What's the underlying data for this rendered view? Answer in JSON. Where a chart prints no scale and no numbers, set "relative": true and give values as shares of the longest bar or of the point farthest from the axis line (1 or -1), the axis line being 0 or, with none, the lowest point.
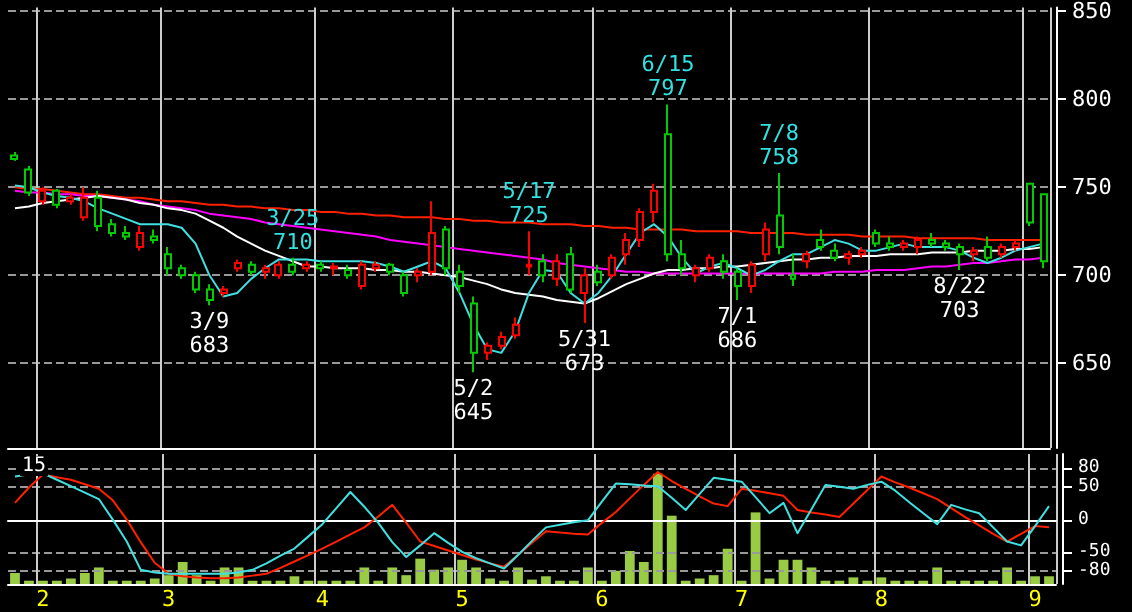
{
  "chart_data": [
    {
      "type": "candlestick",
      "tick_labels": "y",
      "grid": true,
      "marker": "none",
      "ylim": [
        602,
        852
      ],
      "yticks": [
        650,
        700,
        750,
        800,
        850
      ],
      "categories": [
        null,
        null,
        "2",
        null,
        null,
        null,
        null,
        null,
        null,
        null,
        null,
        "3",
        null,
        null,
        null,
        null,
        null,
        null,
        null,
        null,
        null,
        null,
        "4",
        null,
        null,
        null,
        null,
        null,
        null,
        null,
        null,
        null,
        "5",
        null,
        null,
        null,
        null,
        null,
        null,
        null,
        null,
        null,
        "6",
        null,
        null,
        null,
        null,
        null,
        null,
        null,
        null,
        null,
        "7",
        null,
        null,
        null,
        null,
        null,
        null,
        null,
        null,
        null,
        "8",
        null,
        null,
        null,
        null,
        null,
        null,
        null,
        null,
        null,
        null,
        "9",
        null
      ],
      "ohlc": [
        [
          768,
          770,
          765,
          766
        ],
        [
          760,
          762,
          745,
          747
        ],
        [
          742,
          750,
          740,
          748
        ],
        [
          748,
          749,
          738,
          740
        ],
        [
          742,
          746,
          740,
          744
        ],
        [
          733,
          750,
          731,
          744
        ],
        [
          744,
          748,
          725,
          728
        ],
        [
          729,
          732,
          722,
          724
        ],
        [
          724,
          728,
          720,
          722
        ],
        [
          716,
          728,
          714,
          724
        ],
        [
          722,
          726,
          718,
          720
        ],
        [
          712,
          716,
          700,
          704
        ],
        [
          704,
          706,
          698,
          700
        ],
        [
          700,
          702,
          690,
          692
        ],
        [
          692,
          695,
          683,
          686
        ],
        [
          690,
          694,
          688,
          692
        ],
        [
          704,
          709,
          702,
          707
        ],
        [
          706,
          708,
          700,
          702
        ],
        [
          702,
          706,
          698,
          704
        ],
        [
          700,
          708,
          698,
          706
        ],
        [
          706,
          710,
          700,
          702
        ],
        [
          704,
          708,
          702,
          706
        ],
        [
          706,
          708,
          702,
          704
        ],
        [
          704,
          707,
          700,
          705
        ],
        [
          703,
          706,
          698,
          700
        ],
        [
          694,
          708,
          692,
          706
        ],
        [
          704,
          708,
          702,
          706
        ],
        [
          706,
          707,
          700,
          702
        ],
        [
          700,
          702,
          688,
          690
        ],
        [
          700,
          704,
          696,
          702
        ],
        [
          702,
          742,
          700,
          724
        ],
        [
          726,
          728,
          700,
          704
        ],
        [
          702,
          706,
          690,
          694
        ],
        [
          684,
          688,
          645,
          656
        ],
        [
          656,
          662,
          652,
          660
        ],
        [
          660,
          668,
          658,
          665
        ],
        [
          666,
          676,
          664,
          672
        ],
        [
          705,
          725,
          700,
          706
        ],
        [
          708,
          712,
          696,
          700
        ],
        [
          698,
          712,
          694,
          708
        ],
        [
          712,
          716,
          690,
          692
        ],
        [
          690,
          704,
          673,
          700
        ],
        [
          702,
          706,
          694,
          696
        ],
        [
          700,
          712,
          698,
          710
        ],
        [
          712,
          724,
          706,
          720
        ],
        [
          720,
          738,
          716,
          736
        ],
        [
          736,
          752,
          730,
          748
        ],
        [
          780,
          797,
          708,
          712
        ],
        [
          712,
          720,
          700,
          704
        ],
        [
          700,
          706,
          696,
          704
        ],
        [
          704,
          712,
          702,
          710
        ],
        [
          708,
          712,
          698,
          702
        ],
        [
          702,
          704,
          686,
          694
        ],
        [
          694,
          708,
          690,
          706
        ],
        [
          712,
          730,
          708,
          726
        ],
        [
          734,
          758,
          712,
          716
        ],
        [
          700,
          712,
          694,
          698
        ],
        [
          708,
          714,
          704,
          712
        ],
        [
          720,
          726,
          714,
          716
        ],
        [
          714,
          718,
          708,
          710
        ],
        [
          710,
          714,
          706,
          712
        ],
        [
          712,
          716,
          710,
          714
        ],
        [
          724,
          726,
          716,
          718
        ],
        [
          718,
          722,
          714,
          716
        ],
        [
          716,
          720,
          714,
          718
        ],
        [
          716,
          722,
          712,
          720
        ],
        [
          720,
          724,
          716,
          718
        ],
        [
          718,
          720,
          714,
          716
        ],
        [
          716,
          718,
          703,
          712
        ],
        [
          712,
          716,
          708,
          714
        ],
        [
          716,
          722,
          708,
          710
        ],
        [
          712,
          718,
          710,
          716
        ],
        [
          716,
          720,
          714,
          718
        ],
        [
          752,
          752,
          728,
          730
        ],
        [
          746,
          746,
          704,
          708
        ]
      ],
      "colors": [
        "#00cc00",
        "#00cc00",
        "#ff0000",
        "#00cc00",
        "#ff0000",
        "#ff0000",
        "#00cc00",
        "#00cc00",
        "#00cc00",
        "#ff0000",
        "#00cc00",
        "#00cc00",
        "#00cc00",
        "#00cc00",
        "#00cc00",
        "#ff0000",
        "#ff0000",
        "#00cc00",
        "#ff0000",
        "#ff0000",
        "#00cc00",
        "#ff0000",
        "#00cc00",
        "#ff0000",
        "#00cc00",
        "#ff0000",
        "#ff0000",
        "#00cc00",
        "#00cc00",
        "#ff0000",
        "#ff0000",
        "#00cc00",
        "#00cc00",
        "#00cc00",
        "#ff0000",
        "#ff0000",
        "#ff0000",
        "#ff0000",
        "#00cc00",
        "#ff0000",
        "#00cc00",
        "#ff0000",
        "#00cc00",
        "#ff0000",
        "#ff0000",
        "#ff0000",
        "#ff0000",
        "#00cc00",
        "#00cc00",
        "#ff0000",
        "#ff0000",
        "#00cc00",
        "#00cc00",
        "#ff0000",
        "#ff0000",
        "#00cc00",
        "#00cc00",
        "#ff0000",
        "#00cc00",
        "#00cc00",
        "#ff0000",
        "#ff0000",
        "#00cc00",
        "#00cc00",
        "#ff0000",
        "#ff0000",
        "#00cc00",
        "#00cc00",
        "#00cc00",
        "#ff0000",
        "#00cc00",
        "#ff0000",
        "#ff0000",
        "#00cc00",
        "#00cc00"
      ],
      "value_labels": [
        null,
        null,
        null,
        null,
        null,
        null,
        null,
        null,
        null,
        null,
        null,
        null,
        null,
        null,
        "3/9\n683",
        null,
        null,
        null,
        null,
        null,
        "3/25\n710",
        null,
        null,
        null,
        null,
        null,
        null,
        null,
        null,
        null,
        null,
        null,
        null,
        "5/2\n645",
        null,
        null,
        null,
        "5/17\n725",
        null,
        null,
        null,
        "5/31\n673",
        null,
        null,
        null,
        null,
        null,
        "6/15\n797",
        null,
        null,
        null,
        null,
        "7/1\n686",
        null,
        null,
        "7/8\n758",
        null,
        null,
        null,
        null,
        null,
        null,
        null,
        null,
        null,
        null,
        null,
        null,
        "8/22\n703",
        null,
        null,
        null,
        null,
        null,
        null
      ],
      "series": [
        {
          "type": "line",
          "color": "#ff2000",
          "values": [
            750,
            749,
            749,
            748,
            747,
            746,
            746,
            745,
            744,
            744,
            743,
            742,
            742,
            741,
            740,
            740,
            739,
            739,
            738,
            738,
            737,
            737,
            736,
            736,
            735,
            735,
            734,
            734,
            733,
            733,
            733,
            732,
            732,
            731,
            731,
            730,
            730,
            730,
            729,
            729,
            729,
            728,
            728,
            727,
            727,
            726,
            726,
            726,
            726,
            725,
            725,
            725,
            725,
            724,
            724,
            724,
            724,
            723,
            723,
            723,
            723,
            722,
            722,
            722,
            722,
            721,
            721,
            721,
            721,
            721,
            720,
            720,
            720,
            720,
            720
          ]
        },
        {
          "type": "line",
          "color": "#ff00ff",
          "values": [
            748,
            747,
            747,
            746,
            746,
            745,
            745,
            744,
            743,
            742,
            740,
            739,
            738,
            737,
            735,
            734,
            733,
            732,
            730,
            729,
            728,
            727,
            726,
            725,
            724,
            723,
            722,
            720,
            719,
            718,
            717,
            716,
            715,
            714,
            713,
            712,
            711,
            710,
            709,
            707,
            706,
            705,
            704,
            703,
            702,
            702,
            701,
            701,
            701,
            701,
            701,
            701,
            701,
            701,
            701,
            701,
            701,
            701,
            701,
            702,
            702,
            702,
            703,
            703,
            703,
            704,
            705,
            705,
            706,
            707,
            707,
            708,
            709,
            709,
            710
          ]
        },
        {
          "type": "line",
          "color": "#ffffff",
          "values": [
            738,
            739,
            741,
            742,
            743,
            744,
            745,
            744,
            743,
            741,
            740,
            738,
            737,
            735,
            731,
            727,
            722,
            718,
            714,
            711,
            708,
            705,
            705,
            704,
            704,
            704,
            703,
            703,
            702,
            702,
            701,
            700,
            699,
            697,
            695,
            692,
            690,
            689,
            688,
            686,
            685,
            684,
            687,
            691,
            695,
            698,
            701,
            703,
            703,
            704,
            704,
            705,
            705,
            706,
            707,
            708,
            709,
            709,
            710,
            710,
            711,
            711,
            711,
            712,
            712,
            712,
            713,
            713,
            713,
            714,
            714,
            714,
            715,
            715,
            716
          ]
        },
        {
          "type": "line",
          "color": "#40e0e0",
          "values": [
            751,
            750,
            747,
            745,
            744,
            742,
            738,
            735,
            732,
            729,
            729,
            729,
            727,
            718,
            700,
            688,
            690,
            698,
            704,
            709,
            709,
            709,
            708,
            708,
            708,
            708,
            707,
            705,
            702,
            705,
            708,
            704,
            690,
            672,
            658,
            656,
            668,
            690,
            703,
            702,
            690,
            684,
            690,
            700,
            712,
            724,
            729,
            722,
            710,
            701,
            705,
            707,
            704,
            700,
            703,
            708,
            712,
            712,
            716,
            720,
            718,
            714,
            714,
            716,
            718,
            716,
            716,
            716,
            714,
            710,
            707,
            710,
            714,
            716,
            718
          ]
        }
      ]
    },
    {
      "type": "line",
      "grid": true,
      "marker": "none",
      "ylim": [
        -100,
        102
      ],
      "yticks": [
        -80,
        -50,
        0,
        50,
        80
      ],
      "annotations": [
        "15"
      ],
      "categories": [
        null,
        null,
        "2",
        null,
        null,
        null,
        null,
        null,
        null,
        null,
        null,
        "3",
        null,
        null,
        null,
        null,
        null,
        null,
        null,
        null,
        null,
        null,
        "4",
        null,
        null,
        null,
        null,
        null,
        null,
        null,
        null,
        null,
        "5",
        null,
        null,
        null,
        null,
        null,
        null,
        null,
        null,
        null,
        "6",
        null,
        null,
        null,
        null,
        null,
        null,
        null,
        null,
        null,
        "7",
        null,
        null,
        null,
        null,
        null,
        null,
        null,
        null,
        null,
        "8",
        null,
        null,
        null,
        null,
        null,
        null,
        null,
        null,
        null,
        null,
        "9",
        null
      ],
      "series": [
        {
          "color": "#ff2000",
          "values": [
            26,
            50,
            70,
            66,
            62,
            55,
            48,
            30,
            0,
            -35,
            -67,
            -84,
            -88,
            -90,
            -91,
            -91,
            -90,
            -87,
            -84,
            -75,
            -65,
            -55,
            -45,
            -34,
            -23,
            -12,
            5,
            23,
            -5,
            -34,
            -41,
            -48,
            -55,
            -62,
            -68,
            -73,
            -55,
            -36,
            -18,
            -20,
            -22,
            -23,
            -5,
            12,
            33,
            54,
            74,
            60,
            48,
            36,
            25,
            21,
            48,
            45,
            41,
            37,
            15,
            11,
            8,
            4,
            25,
            46,
            67,
            58,
            50,
            41,
            32,
            18,
            4,
            -9,
            -22,
            -34,
            -22,
            -10,
            -12
          ]
        },
        {
          "color": "#40e0e0",
          "values": [
            67,
            70,
            72,
            62,
            52,
            42,
            32,
            0,
            -34,
            -78,
            -82,
            -84,
            -84,
            -84,
            -84,
            -84,
            -82,
            -78,
            -68,
            -56,
            -45,
            -26,
            -7,
            18,
            43,
            20,
            -5,
            -35,
            -58,
            -40,
            -21,
            -36,
            -50,
            -60,
            -68,
            -76,
            -55,
            -33,
            -12,
            -8,
            -4,
            -1,
            28,
            56,
            55,
            53,
            52,
            34,
            15,
            40,
            65,
            62,
            59,
            35,
            10,
            26,
            -21,
            16,
            54,
            51,
            48,
            54,
            59,
            45,
            27,
            10,
            -7,
            23,
            16,
            10,
            -12,
            -34,
            -40,
            -10,
            21
          ]
        }
      ]
    },
    {
      "type": "bar",
      "relative": true,
      "tick_labels": false,
      "color": "#99cc44",
      "categories": [
        null,
        null,
        "2",
        null,
        null,
        null,
        null,
        null,
        null,
        null,
        null,
        "3",
        null,
        null,
        null,
        null,
        null,
        null,
        null,
        null,
        null,
        null,
        "4",
        null,
        null,
        null,
        null,
        null,
        null,
        null,
        null,
        null,
        "5",
        null,
        null,
        null,
        null,
        null,
        null,
        null,
        null,
        null,
        "6",
        null,
        null,
        null,
        null,
        null,
        null,
        null,
        null,
        null,
        "7",
        null,
        null,
        null,
        null,
        null,
        null,
        null,
        null,
        null,
        "8",
        null,
        null,
        null,
        null,
        null,
        null,
        null,
        null,
        null,
        null,
        "9",
        null
      ],
      "values": [
        0.1,
        0.03,
        0.03,
        0.03,
        0.05,
        0.1,
        0.15,
        0.03,
        0.03,
        0.03,
        0.05,
        0.08,
        0.2,
        0.08,
        0.03,
        0.15,
        0.15,
        0.03,
        0.03,
        0.03,
        0.07,
        0.03,
        0.03,
        0.03,
        0.03,
        0.15,
        0.03,
        0.15,
        0.08,
        0.23,
        0.13,
        0.15,
        0.22,
        0.15,
        0.05,
        0.03,
        0.15,
        0.04,
        0.07,
        0.03,
        0.03,
        0.15,
        0.03,
        0.12,
        0.3,
        0.2,
        1,
        0.62,
        0.03,
        0.05,
        0.08,
        0.32,
        0.03,
        0.65,
        0.05,
        0.22,
        0.22,
        0.15,
        0.03,
        0.03,
        0.06,
        0.03,
        0.06,
        0.03,
        0.03,
        0.03,
        0.15,
        0.03,
        0.03,
        0.03,
        0.03,
        0.15,
        0.03,
        0.07,
        0.07
      ]
    }
  ]
}
